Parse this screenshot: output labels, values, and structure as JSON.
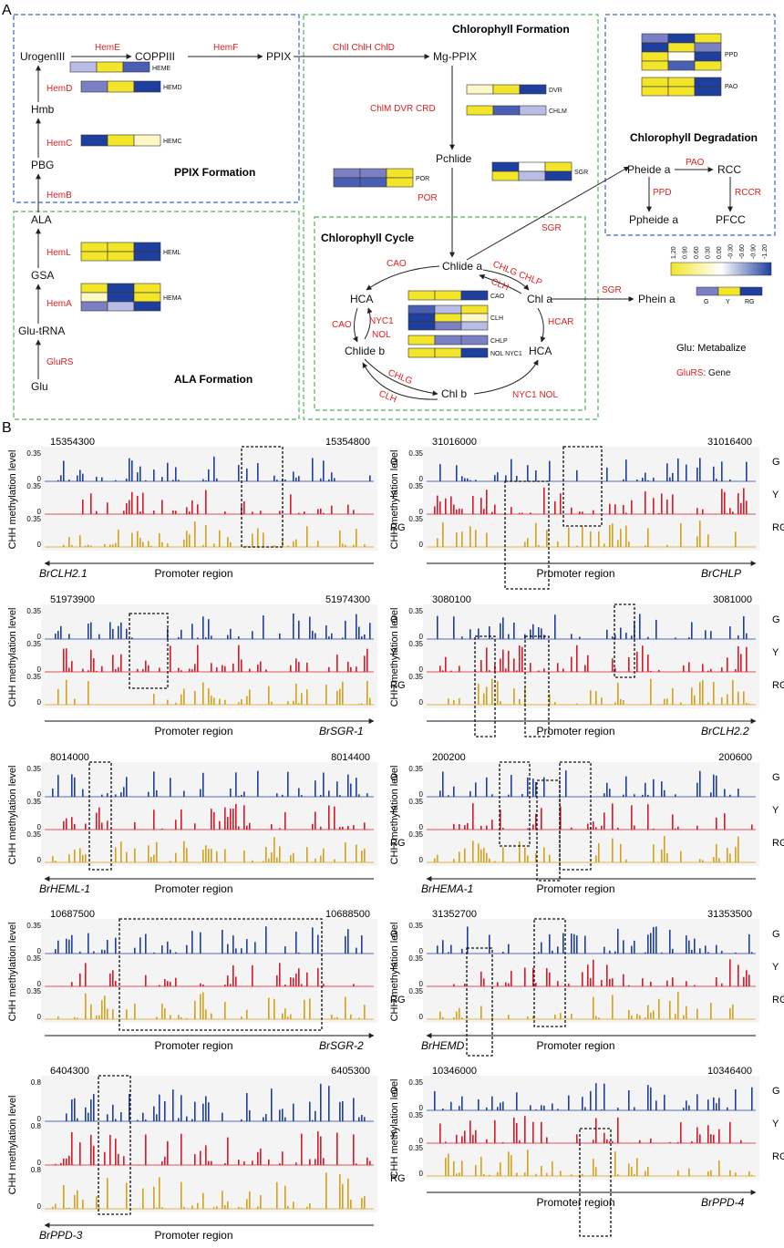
{
  "colors": {
    "blue": "#1f3f9e",
    "mid_blue": "#7b7fc4",
    "light_blue": "#b9bde6",
    "yellow": "#f2e52a",
    "pale": "#fbf7c6",
    "red": "#d7192a",
    "gold": "#d4a21a",
    "gene_red": "#e02020",
    "box_blue": "#3a63c9",
    "box_green": "#4fb35a"
  },
  "panel_a": {
    "label": "A",
    "ppix_title": "PPIX Formation",
    "ala_title": "ALA Formation",
    "chl_form_title": "Chlorophyll Formation",
    "chl_cycle_title": "Chlorophyll Cycle",
    "chl_deg_title": "Chlorophyll Degradation",
    "metabolites": {
      "urogen": "UrogenIII",
      "coppiii": "COPPIII",
      "ppix": "PPIX",
      "mgppix": "Mg-PPIX",
      "hmb": "Hmb",
      "pbg": "PBG",
      "ala": "ALA",
      "gsa": "GSA",
      "glutrna": "Glu-tRNA",
      "glu": "Glu",
      "pchlide": "Pchlide",
      "chlidea": "Chlide a",
      "chla": "Chl a",
      "hca1": "HCA",
      "hca2": "HCA",
      "chlideb": "Chlide b",
      "chlb": "Chl b",
      "pheidea": "Pheide a",
      "rcc": "RCC",
      "ppheidea": "Ppheide a",
      "pfcc": "PFCC",
      "pheina": "Phein a"
    },
    "genes": {
      "heme": "HemE",
      "hemf": "HemF",
      "hemd": "HemD",
      "hemc": "HemC",
      "hemb": "HemB",
      "heml": "HemL",
      "hema": "HemA",
      "glurs": "GluRS",
      "chli": "ChlI ChlH ChlD",
      "chlm": "ChlM  DVR  CRD",
      "por": "POR",
      "sgr1": "SGR",
      "sgr2": "SGR",
      "cao1": "CAO",
      "cao2": "CAO",
      "chlg1": "CHLG CHLP",
      "clh1": "CLH",
      "nyc1": "NYC1",
      "nol1": "NOL",
      "hcar": "HCAR",
      "chlg2": "CHLG",
      "clh2": "CLH",
      "nyc2": "NYC1 NOL",
      "pao": "PAO",
      "ppd": "PPD",
      "rccr": "RCCR"
    },
    "heat_labels": {
      "heme": "HEME",
      "hemd": "HEMD",
      "hemc": "HEMC",
      "heml": "HEML",
      "hema": "HEMA",
      "dvr": "DVR",
      "chlm": "CHLM",
      "por": "POR",
      "sgr": "SGR",
      "cao": "CAO",
      "clh": "CLH",
      "chlp": "CHLP",
      "nolnyc": "NOL NYC1",
      "ppd": "PPD",
      "pao": "PAO"
    },
    "scale_ticks": [
      "1.20",
      "0.90",
      "0.60",
      "0.30",
      "0.00",
      "-0.30",
      "-0.60",
      "-0.90",
      "-1.20"
    ],
    "legend_samples": [
      "G",
      "Y",
      "RG"
    ],
    "legend_glu": "Glu: Metabalize",
    "legend_gene_name": "GluRS",
    "legend_gene_rest": ": Gene"
  },
  "panel_b": {
    "label": "B",
    "ylabel": "CHH methylation level",
    "promoter": "Promoter region",
    "samples": [
      "G",
      "Y",
      "RG"
    ],
    "tracks": [
      {
        "start": "15354300",
        "end": "15354800",
        "gene": "BrCLH2.1",
        "dir": "left",
        "ticks": [
          "0.35",
          "0",
          "0.35",
          "0",
          "0.35",
          "0"
        ]
      },
      {
        "start": "31016000",
        "end": "31016400",
        "gene": "BrCHLP",
        "dir": "right",
        "ticks": [
          "0.35",
          "0",
          "0.35",
          "0",
          "0.35",
          "0"
        ]
      },
      {
        "start": "51973900",
        "end": "51974300",
        "gene": "BrSGR-1",
        "dir": "right",
        "ticks": [
          "0.35",
          "0",
          "0.35",
          "0",
          "0.35",
          "0"
        ]
      },
      {
        "start": "3080100",
        "end": "3081000",
        "gene": "BrCLH2.2",
        "dir": "right",
        "ticks": [
          "0.35",
          "0",
          "0.35",
          "0",
          "0.35",
          "0"
        ]
      },
      {
        "start": "8014000",
        "end": "8014400",
        "gene": "BrHEML-1",
        "dir": "left",
        "ticks": [
          "0.35",
          "0",
          "0.35",
          "0",
          "0.35",
          "0"
        ]
      },
      {
        "start": "200200",
        "end": "200600",
        "gene": "BrHEMA-1",
        "dir": "left",
        "ticks": [
          "0.35",
          "0",
          "0.35",
          "0",
          "0.35",
          "0"
        ]
      },
      {
        "start": "10687500",
        "end": "10688500",
        "gene": "BrSGR-2",
        "dir": "right",
        "ticks": [
          "0.35",
          "0",
          "0.35",
          "0",
          "0.35",
          "0"
        ]
      },
      {
        "start": "31352700",
        "end": "31353500",
        "gene": "BrHEMD",
        "dir": "left",
        "ticks": [
          "0.35",
          "0",
          "0.35",
          "0",
          "0.35",
          "0"
        ]
      },
      {
        "start": "6404300",
        "end": "6405300",
        "gene": "BrPPD-3",
        "dir": "left",
        "ticks": [
          "0.8",
          "0",
          "0.8",
          "0",
          "0.8",
          "0"
        ]
      },
      {
        "start": "10346000",
        "end": "10346400",
        "gene": "BrPPD-4",
        "dir": "right",
        "ticks": [
          "0.35",
          "0",
          "0.35",
          "0",
          "0.35",
          "0"
        ]
      }
    ]
  }
}
